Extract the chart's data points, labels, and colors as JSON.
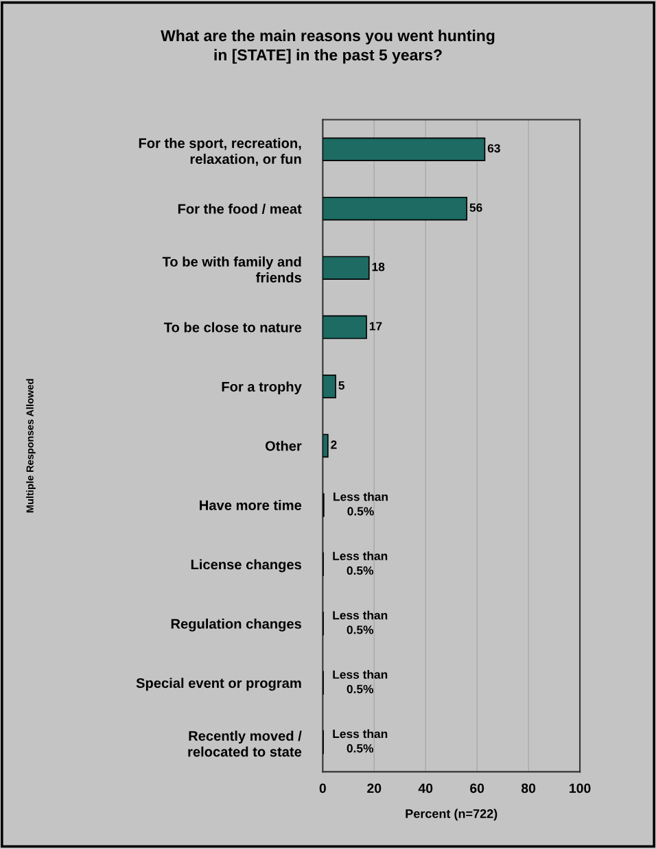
{
  "chart_data": {
    "type": "bar",
    "orientation": "horizontal",
    "title": "What are the main reasons you went hunting\nin [STATE] in the past 5 years?",
    "xlabel": "Percent (n=722)",
    "annotations": [
      "Multiple Responses Allowed"
    ],
    "categories": [
      "For the sport, recreation,\nrelaxation, or fun",
      "For the food / meat",
      "To be with family and\nfriends",
      "To be close to nature",
      "For a trophy",
      "Other",
      "Have more time",
      "License changes",
      "Regulation changes",
      "Special event or program",
      "Recently moved /\nrelocated to state"
    ],
    "values": [
      63,
      56,
      18,
      17,
      5,
      2,
      0.4,
      0.2,
      0.2,
      0.2,
      0.2
    ],
    "value_labels": [
      "63",
      "56",
      "18",
      "17",
      "5",
      "2",
      "Less than\n0.5%",
      "Less than\n0.5%",
      "Less than\n0.5%",
      "Less than\n0.5%",
      "Less than\n0.5%"
    ],
    "color": "#1d6b63",
    "xlim": [
      0,
      100
    ],
    "xticks": [
      0,
      20,
      40,
      60,
      80,
      100
    ],
    "grid": "x"
  }
}
